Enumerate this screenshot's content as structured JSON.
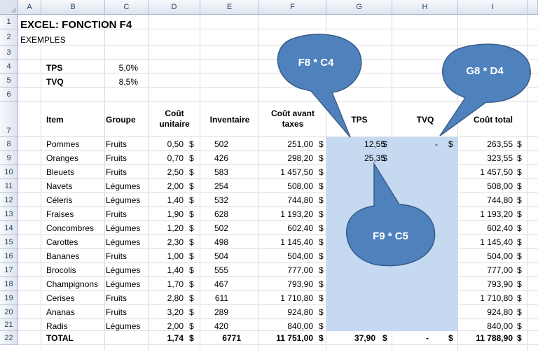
{
  "columns": [
    "A",
    "B",
    "C",
    "D",
    "E",
    "F",
    "G",
    "H",
    "I"
  ],
  "rows": [
    "1",
    "2",
    "3",
    "4",
    "5",
    "6",
    "7",
    "8",
    "9",
    "10",
    "11",
    "12",
    "13",
    "14",
    "15",
    "16",
    "17",
    "18",
    "19",
    "20",
    "21",
    "22"
  ],
  "title": "EXCEL: FONCTION F4",
  "subtitle": "EXEMPLES",
  "rates": [
    {
      "label": "TPS",
      "value": "5,0%"
    },
    {
      "label": "TVQ",
      "value": "8,5%"
    }
  ],
  "headers": {
    "item": "Item",
    "groupe": "Groupe",
    "cout1": "Coût",
    "cout2": "unitaire",
    "inventaire": "Inventaire",
    "avant1": "Coût avant",
    "avant2": "taxes",
    "tps": "TPS",
    "tvq": "TVQ",
    "total": "Coût total"
  },
  "currency": "$",
  "items": [
    {
      "item": "Pommes",
      "groupe": "Fruits",
      "cout": "0,50",
      "inv": "502",
      "avant": "251,00",
      "tps": "12,55",
      "tvq": "-",
      "total": "263,55"
    },
    {
      "item": "Oranges",
      "groupe": "Fruits",
      "cout": "0,70",
      "inv": "426",
      "avant": "298,20",
      "tps": "25,35",
      "tvq": "",
      "total": "323,55"
    },
    {
      "item": "Bleuets",
      "groupe": "Fruits",
      "cout": "2,50",
      "inv": "583",
      "avant": "1 457,50",
      "tps": "",
      "tvq": "",
      "total": "1 457,50"
    },
    {
      "item": "Navets",
      "groupe": "Légumes",
      "cout": "2,00",
      "inv": "254",
      "avant": "508,00",
      "tps": "",
      "tvq": "",
      "total": "508,00"
    },
    {
      "item": "Céleris",
      "groupe": "Légumes",
      "cout": "1,40",
      "inv": "532",
      "avant": "744,80",
      "tps": "",
      "tvq": "",
      "total": "744,80"
    },
    {
      "item": "Fraises",
      "groupe": "Fruits",
      "cout": "1,90",
      "inv": "628",
      "avant": "1 193,20",
      "tps": "",
      "tvq": "",
      "total": "1 193,20"
    },
    {
      "item": "Concombres",
      "groupe": "Légumes",
      "cout": "1,20",
      "inv": "502",
      "avant": "602,40",
      "tps": "",
      "tvq": "",
      "total": "602,40"
    },
    {
      "item": "Carottes",
      "groupe": "Légumes",
      "cout": "2,30",
      "inv": "498",
      "avant": "1 145,40",
      "tps": "",
      "tvq": "",
      "total": "1 145,40"
    },
    {
      "item": "Bananes",
      "groupe": "Fruits",
      "cout": "1,00",
      "inv": "504",
      "avant": "504,00",
      "tps": "",
      "tvq": "",
      "total": "504,00"
    },
    {
      "item": "Brocolis",
      "groupe": "Légumes",
      "cout": "1,40",
      "inv": "555",
      "avant": "777,00",
      "tps": "",
      "tvq": "",
      "total": "777,00"
    },
    {
      "item": "Champignons",
      "groupe": "Légumes",
      "cout": "1,70",
      "inv": "467",
      "avant": "793,90",
      "tps": "",
      "tvq": "",
      "total": "793,90"
    },
    {
      "item": "Cerises",
      "groupe": "Fruits",
      "cout": "2,80",
      "inv": "611",
      "avant": "1 710,80",
      "tps": "",
      "tvq": "",
      "total": "1 710,80"
    },
    {
      "item": "Ananas",
      "groupe": "Fruits",
      "cout": "3,20",
      "inv": "289",
      "avant": "924,80",
      "tps": "",
      "tvq": "",
      "total": "924,80"
    },
    {
      "item": "Radis",
      "groupe": "Légumes",
      "cout": "2,00",
      "inv": "420",
      "avant": "840,00",
      "tps": "",
      "tvq": "",
      "total": "840,00"
    }
  ],
  "total_row": {
    "label": "TOTAL",
    "cout": "1,74",
    "inv": "6771",
    "avant": "11 751,00",
    "tps": "37,90",
    "tvq": "-",
    "total": "11 788,90"
  },
  "callouts": [
    {
      "text": "F8 * C4"
    },
    {
      "text": "G8 * D4"
    },
    {
      "text": "F9 * C5"
    }
  ],
  "colors": {
    "callout_fill": "#4f81bd",
    "callout_stroke": "#385d8a",
    "highlight": "#c5d9f1"
  }
}
